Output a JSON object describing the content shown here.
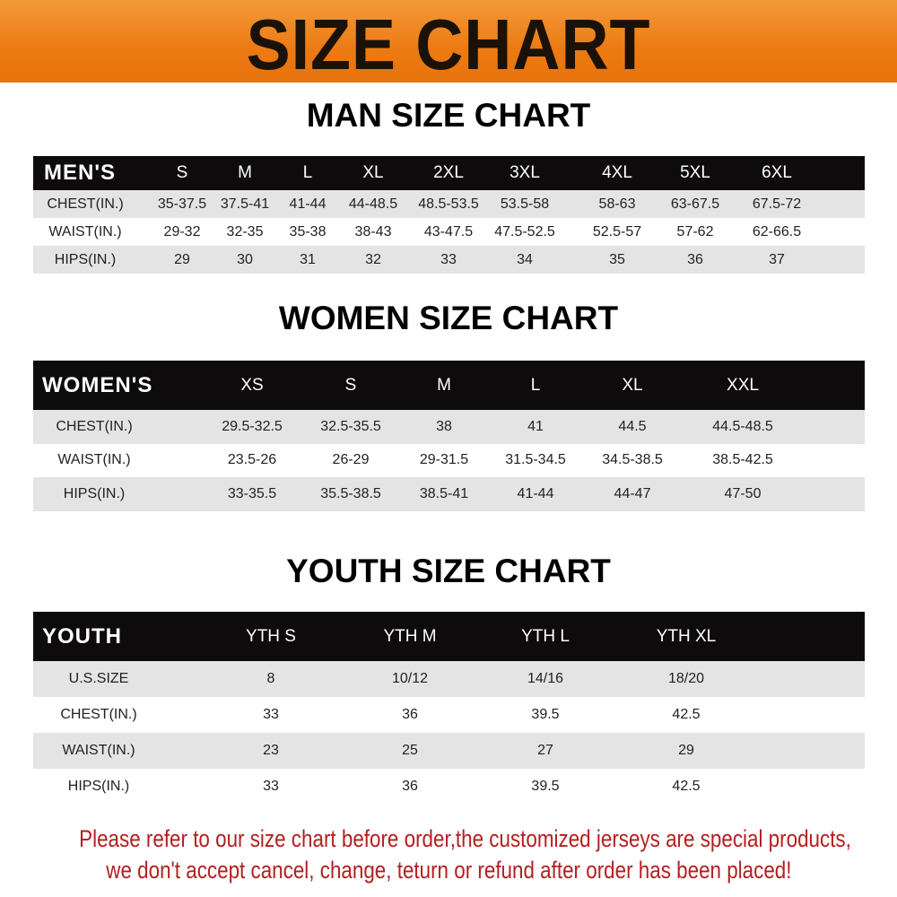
{
  "banner": {
    "title": "SIZE CHART",
    "color": "#ec7a12"
  },
  "men": {
    "title": "MAN SIZE CHART",
    "header": [
      "MEN'S",
      "S",
      "M",
      "L",
      "XL",
      "2XL",
      "3XL",
      "4XL",
      "5XL",
      "6XL"
    ],
    "rows": [
      [
        "CHEST(IN.)",
        "35-37.5",
        "37.5-41",
        "41-44",
        "44-48.5",
        "48.5-53.5",
        "53.5-58",
        "58-63",
        "63-67.5",
        "67.5-72"
      ],
      [
        "WAIST(IN.)",
        "29-32",
        "32-35",
        "35-38",
        "38-43",
        "43-47.5",
        "47.5-52.5",
        "52.5-57",
        "57-62",
        "62-66.5"
      ],
      [
        "HIPS(IN.)",
        "29",
        "30",
        "31",
        "32",
        "33",
        "34",
        "35",
        "36",
        "37"
      ]
    ]
  },
  "women": {
    "title": "WOMEN SIZE CHART",
    "header": [
      "WOMEN'S",
      "XS",
      "S",
      "M",
      "L",
      "XL",
      "XXL"
    ],
    "rows": [
      [
        "CHEST(IN.)",
        "29.5-32.5",
        "32.5-35.5",
        "38",
        "41",
        "44.5",
        "44.5-48.5"
      ],
      [
        "WAIST(IN.)",
        "23.5-26",
        "26-29",
        "29-31.5",
        "31.5-34.5",
        "34.5-38.5",
        "38.5-42.5"
      ],
      [
        "HIPS(IN.)",
        "33-35.5",
        "35.5-38.5",
        "38.5-41",
        "41-44",
        "44-47",
        "47-50"
      ]
    ]
  },
  "youth": {
    "title": "YOUTH SIZE CHART",
    "header": [
      "YOUTH",
      "YTH S",
      "YTH M",
      "YTH L",
      "YTH XL"
    ],
    "rows": [
      [
        "U.S.SIZE",
        "8",
        "10/12",
        "14/16",
        "18/20"
      ],
      [
        "CHEST(IN.)",
        "33",
        "36",
        "39.5",
        "42.5"
      ],
      [
        "WAIST(IN.)",
        "23",
        "25",
        "27",
        "29"
      ],
      [
        "HIPS(IN.)",
        "33",
        "36",
        "39.5",
        "42.5"
      ]
    ]
  },
  "footer": {
    "line1": "Please refer to our size chart before order,the customized jerseys are special products,",
    "line2": "we don't accept cancel, change, teturn or refund after order has been placed!",
    "color": "#b3201f"
  }
}
